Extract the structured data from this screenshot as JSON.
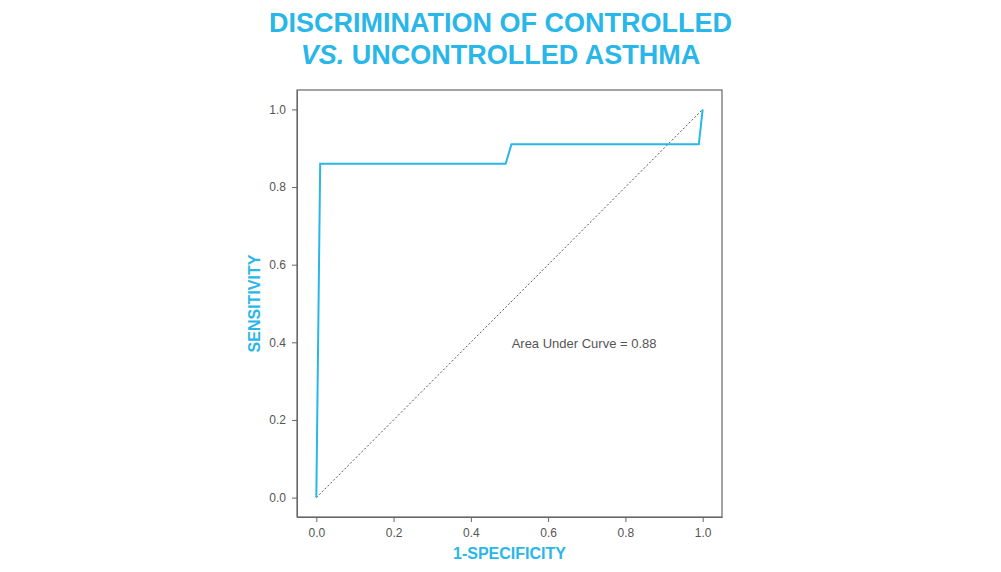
{
  "chart_data": {
    "type": "line",
    "title": "DISCRIMINATION OF CONTROLLED VS. UNCONTROLLED ASTHMA",
    "x_label": "1-SPECIFICITY",
    "y_label": "SENSITIVITY",
    "annotation": "Area Under Curve = 0.88",
    "series": [
      {
        "color": "#29b6e8",
        "line_style": "solid",
        "x": [
          0,
          0.01,
          0.49,
          0.505,
          0.99,
          1
        ],
        "values": [
          0,
          0.86,
          0.86,
          0.91,
          0.91,
          1
        ]
      },
      {
        "color": "#555555",
        "line_style": "dotted",
        "x": [
          0,
          1
        ],
        "values": [
          0,
          1
        ]
      }
    ],
    "xlim": [
      -0.05,
      1.05
    ],
    "ylim": [
      -0.05,
      1.05
    ],
    "xticks": [
      {
        "value": 0,
        "label": "0.0"
      },
      0.2,
      0.4,
      0.6,
      0.8,
      {
        "value": 1,
        "label": "1.0"
      }
    ],
    "yticks": [
      {
        "value": 0,
        "label": "0.0"
      },
      0.2,
      0.4,
      0.6,
      0.8,
      {
        "value": 1,
        "label": "1.0"
      }
    ],
    "grid": false
  }
}
